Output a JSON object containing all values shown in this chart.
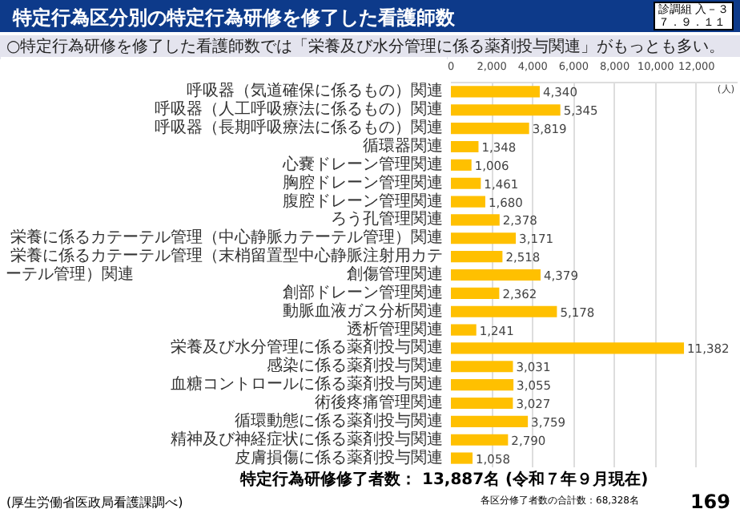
{
  "chart_data": {
    "type": "bar",
    "orientation": "horizontal",
    "title": "特定行為区分別の特定行為研修を修了した看護師数",
    "subtitle": "○特定行為研修を修了した看護師数では「栄養及び水分管理に係る薬剤投与関連」がもっとも多い。",
    "categories": [
      "呼吸器（気道確保に係るもの）関連",
      "呼吸器（人工呼吸療法に係るもの）関連",
      "呼吸器（長期呼吸療法に係るもの）関連",
      "循環器関連",
      "心嚢ドレーン管理関連",
      "胸腔ドレーン管理関連",
      "腹腔ドレーン管理関連",
      "ろう孔管理関連",
      "栄養に係るカテーテル管理（中心静脈カテーテル管理）関連",
      "栄養に係るカテーテル管理（末梢留置型中心静脈注射用カテーテル管理）関連",
      "創傷管理関連",
      "創部ドレーン管理関連",
      "動脈血液ガス分析関連",
      "透析管理関連",
      "栄養及び水分管理に係る薬剤投与関連",
      "感染に係る薬剤投与関連",
      "血糖コントロールに係る薬剤投与関連",
      "術後疼痛管理関連",
      "循環動態に係る薬剤投与関連",
      "精神及び神経症状に係る薬剤投与関連",
      "皮膚損傷に係る薬剤投与関連"
    ],
    "values": [
      4340,
      5345,
      3819,
      1348,
      1006,
      1461,
      1680,
      2378,
      3171,
      2518,
      4379,
      2362,
      5178,
      1241,
      11382,
      3031,
      3055,
      3027,
      3759,
      2790,
      1058
    ],
    "color": "#ffc000",
    "xlim": [
      0,
      14000
    ],
    "xticks": [
      0,
      {
        "value": 2000,
        "label": "2,000"
      },
      {
        "value": 4000,
        "label": "4,000"
      },
      {
        "value": 6000,
        "label": "6,000"
      },
      {
        "value": 8000,
        "label": "8,000"
      },
      {
        "value": 10000,
        "label": "10,000"
      },
      {
        "value": 12000,
        "label": "12,000"
      }
    ],
    "xlabel": "(人)",
    "grid": "x",
    "value_labels": [
      "4,340",
      "5,345",
      "3,819",
      "1,348",
      "1,006",
      "1,461",
      "1,680",
      "2,378",
      "3,171",
      "2,518",
      "4,379",
      "2,362",
      "5,178",
      "1,241",
      "11,382",
      "3,031",
      "3,055",
      "3,027",
      "3,759",
      "2,790",
      "1,058"
    ],
    "annotations": [
      "診調組 入－３",
      "７．９．１１",
      "特定行為研修修了者数： 13,887名 (令和７年９月現在)",
      "(厚生労働省医政局看護課調べ)",
      "各区分修了者数の合計数：68,328名",
      "169"
    ]
  }
}
